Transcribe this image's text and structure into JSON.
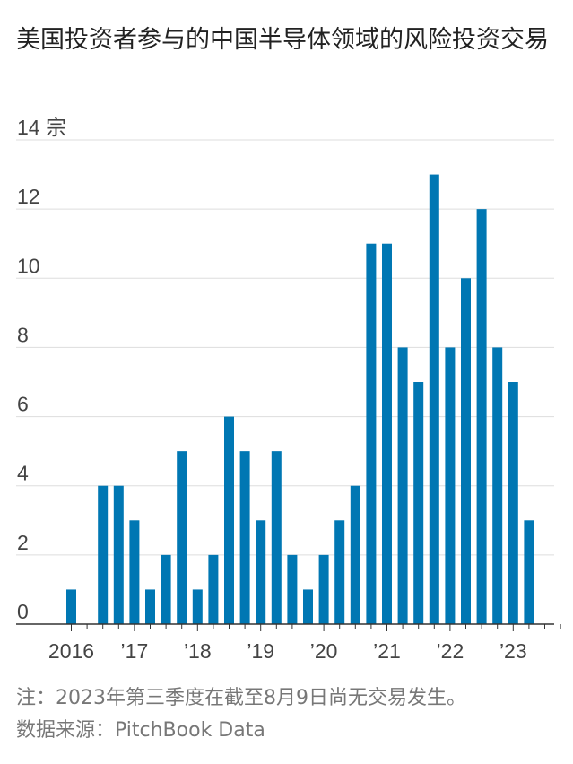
{
  "title": "美国投资者参与的中国半导体领域的风险投资交易",
  "note": "注：2023年第三季度在截至8月9日尚无交易发生。",
  "source": "数据来源：PitchBook Data",
  "colors": {
    "bar": "#0077b3",
    "grid": "#dddddd",
    "axis": "#333333"
  },
  "chart_data": {
    "type": "bar",
    "title": "美国投资者参与的中国半导体领域的风险投资交易",
    "unit": "宗",
    "ylim": [
      0,
      14
    ],
    "y_ticks": [
      "0",
      "2",
      "4",
      "6",
      "8",
      "10",
      "12",
      "14 宗"
    ],
    "x_tick_labels": [
      "2016",
      "’17",
      "’18",
      "’19",
      "’20",
      "’21",
      "’22",
      "’23"
    ],
    "categories": [
      "2016 Q1",
      "2016 Q2",
      "2016 Q3",
      "2016 Q4",
      "2017 Q1",
      "2017 Q2",
      "2017 Q3",
      "2017 Q4",
      "2018 Q1",
      "2018 Q2",
      "2018 Q3",
      "2018 Q4",
      "2019 Q1",
      "2019 Q2",
      "2019 Q3",
      "2019 Q4",
      "2020 Q1",
      "2020 Q2",
      "2020 Q3",
      "2020 Q4",
      "2021 Q1",
      "2021 Q2",
      "2021 Q3",
      "2021 Q4",
      "2022 Q1",
      "2022 Q2",
      "2022 Q3",
      "2022 Q4",
      "2023 Q1",
      "2023 Q2",
      "2023 Q3"
    ],
    "values": [
      1,
      0,
      4,
      4,
      3,
      1,
      2,
      5,
      1,
      2,
      6,
      5,
      3,
      5,
      2,
      1,
      2,
      3,
      4,
      11,
      11,
      8,
      7,
      13,
      8,
      10,
      12,
      8,
      7,
      3,
      0
    ],
    "grid": true
  }
}
